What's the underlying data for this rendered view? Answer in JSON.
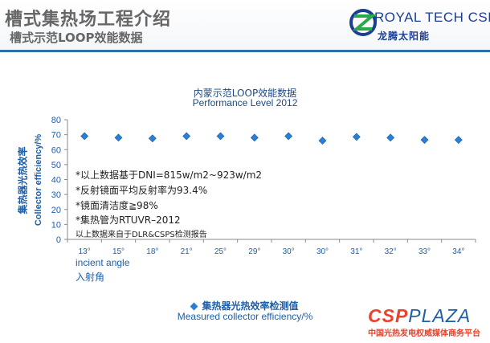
{
  "header": {
    "title": "槽式集热场工程介绍",
    "subtitle": "槽式示范LOOP效能数据",
    "logo_text": "ROYAL TECH CSP",
    "logo_cn": "龙腾太阳能"
  },
  "chart_data": {
    "type": "scatter",
    "title": "内蒙示范LOOP效能数据",
    "subtitle": "Performance Level 2012",
    "ylabel": "Collector efficiency/%",
    "ylabel_cn": "集热器光热效率",
    "xlabel": "incient angle",
    "xlabel_cn": "入射角",
    "categories": [
      "13°",
      "15°",
      "18°",
      "21°",
      "25°",
      "29°",
      "30°",
      "30°",
      "31°",
      "32°",
      "33°",
      "34°"
    ],
    "series": [
      {
        "name": "集热器光热效率检测值",
        "name_en": "Measured collector efficiency/%",
        "values": [
          69,
          68,
          67.5,
          69,
          69,
          68,
          69,
          66,
          68.5,
          68,
          66.5,
          66.5
        ]
      }
    ],
    "yticks": [
      "0",
      "10",
      "20",
      "30",
      "40",
      "50",
      "60",
      "70",
      "80"
    ],
    "ylim": [
      0,
      80
    ],
    "grid": false,
    "legend_position": "bottom",
    "notes": [
      "*以上数据基于DNI=815w/m2~923w/m2",
      "*反射镜面平均反射率为93.4%",
      "*镜面清洁度≧98%",
      "*集热管为RTUVR–2012",
      "以上数据来自于DLR&CSPS检测报告"
    ],
    "marker_color": "#2a7fd4"
  },
  "footer": {
    "brand_csp": "CSP",
    "brand_plaza": "PLAZA",
    "tagline": "中国光热发电权威媒体商务平台"
  }
}
